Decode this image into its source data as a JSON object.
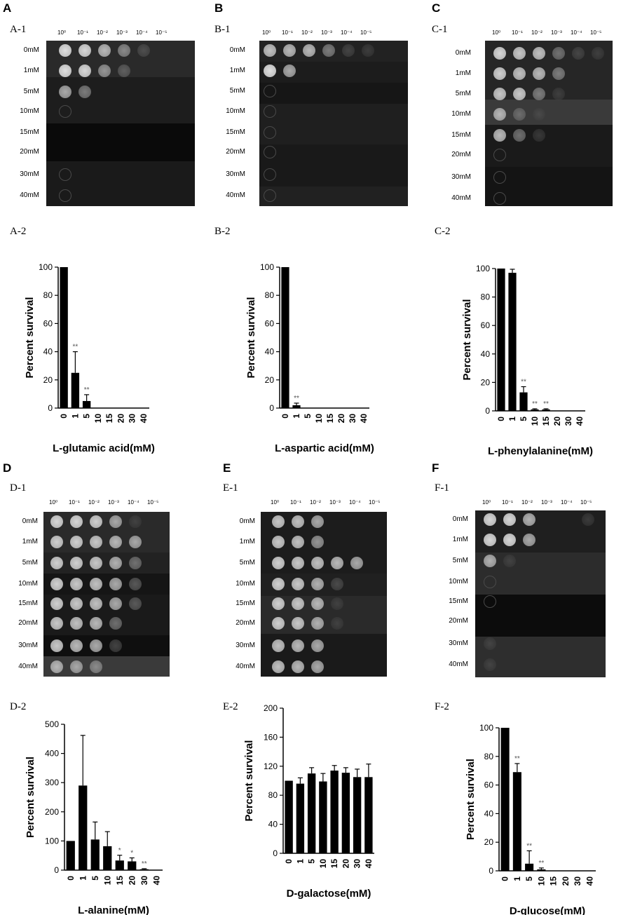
{
  "panels": [
    {
      "id": "A",
      "letter": "A",
      "plate_label": "A-1",
      "chart_label": "A-2",
      "dilutions": [
        "10⁰",
        "10⁻¹",
        "10⁻²",
        "10⁻³",
        "10⁻⁴",
        "10⁻⁵"
      ],
      "concentrations": [
        "0mM",
        "1mM",
        "5mM",
        "10mM",
        "15mM",
        "20mM",
        "30mM",
        "40mM"
      ],
      "growth": [
        [
          0.95,
          0.9,
          0.7,
          0.5,
          0.2,
          0
        ],
        [
          0.95,
          0.9,
          0.55,
          0.3,
          0,
          0
        ],
        [
          0.6,
          0.45,
          0,
          0,
          0,
          0
        ],
        [
          0.05,
          0,
          0,
          0,
          0,
          0
        ],
        [
          0,
          0,
          0,
          0,
          0,
          0
        ],
        [
          0,
          0,
          0,
          0,
          0,
          0
        ],
        [
          0.05,
          0,
          0,
          0,
          0,
          0
        ],
        [
          0.05,
          0,
          0,
          0,
          0,
          0
        ]
      ]
    },
    {
      "id": "B",
      "letter": "B",
      "plate_label": "B-1",
      "chart_label": "B-2",
      "dilutions": [
        "10⁰",
        "10⁻¹",
        "10⁻²",
        "10⁻³",
        "10⁻⁴",
        "10⁻⁵"
      ],
      "concentrations": [
        "0mM",
        "1mM",
        "5mM",
        "10mM",
        "15mM",
        "20mM",
        "30mM",
        "40mM"
      ],
      "growth": [
        [
          0.75,
          0.7,
          0.7,
          0.45,
          0.15,
          0.1
        ],
        [
          0.95,
          0.6,
          0,
          0,
          0,
          0
        ],
        [
          0.05,
          0,
          0,
          0,
          0,
          0
        ],
        [
          0.05,
          0,
          0,
          0,
          0,
          0
        ],
        [
          0.05,
          0,
          0,
          0,
          0,
          0
        ],
        [
          0.05,
          0,
          0,
          0,
          0,
          0
        ],
        [
          0.05,
          0,
          0,
          0,
          0,
          0
        ],
        [
          0.05,
          0,
          0,
          0,
          0,
          0
        ]
      ]
    },
    {
      "id": "C",
      "letter": "C",
      "plate_label": "C-1",
      "chart_label": "C-2",
      "dilutions": [
        "10⁰",
        "10⁻¹",
        "10⁻²",
        "10⁻³",
        "10⁻⁴",
        "10⁻⁵"
      ],
      "concentrations": [
        "0mM",
        "1mM",
        "5mM",
        "10mM",
        "15mM",
        "20mM",
        "30mM",
        "40mM"
      ],
      "growth": [
        [
          0.9,
          0.8,
          0.75,
          0.4,
          0.15,
          0.1
        ],
        [
          0.85,
          0.75,
          0.7,
          0.45,
          0,
          0
        ],
        [
          0.8,
          0.8,
          0.45,
          0.1,
          0,
          0
        ],
        [
          0.7,
          0.35,
          0.1,
          0,
          0,
          0
        ],
        [
          0.7,
          0.4,
          0.1,
          0,
          0,
          0
        ],
        [
          0.05,
          0,
          0,
          0,
          0,
          0
        ],
        [
          0.05,
          0,
          0,
          0,
          0,
          0
        ],
        [
          0.05,
          0,
          0,
          0,
          0,
          0
        ]
      ]
    },
    {
      "id": "D",
      "letter": "D",
      "plate_label": "D-1",
      "chart_label": "D-2",
      "dilutions": [
        "10⁰",
        "10⁻¹",
        "10⁻²",
        "10⁻³",
        "10⁻⁴",
        "10⁻⁵"
      ],
      "concentrations": [
        "0mM",
        "1mM",
        "5mM",
        "10mM",
        "15mM",
        "20mM",
        "30mM",
        "40mM"
      ],
      "growth": [
        [
          0.9,
          0.9,
          0.85,
          0.6,
          0.1,
          0
        ],
        [
          0.85,
          0.85,
          0.8,
          0.7,
          0.6,
          0
        ],
        [
          0.85,
          0.85,
          0.8,
          0.65,
          0.4,
          0
        ],
        [
          0.85,
          0.8,
          0.75,
          0.6,
          0.3,
          0
        ],
        [
          0.85,
          0.8,
          0.75,
          0.6,
          0.3,
          0
        ],
        [
          0.8,
          0.75,
          0.7,
          0.4,
          0,
          0
        ],
        [
          0.8,
          0.7,
          0.6,
          0.2,
          0,
          0
        ],
        [
          0.7,
          0.6,
          0.5,
          0,
          0,
          0
        ]
      ]
    },
    {
      "id": "E",
      "letter": "E",
      "plate_label": "E-1",
      "chart_label": "E-2",
      "dilutions": [
        "10⁰",
        "10⁻¹",
        "10⁻²",
        "10⁻³",
        "10⁻⁴",
        "10⁻⁵"
      ],
      "concentrations": [
        "0mM",
        "1mM",
        "5mM",
        "10mM",
        "15mM",
        "20mM",
        "30mM",
        "40mM"
      ],
      "growth": [
        [
          0.8,
          0.75,
          0.6,
          0,
          0,
          0
        ],
        [
          0.8,
          0.75,
          0.55,
          0,
          0,
          0
        ],
        [
          0.85,
          0.8,
          0.75,
          0.7,
          0.6,
          0
        ],
        [
          0.85,
          0.8,
          0.65,
          0.2,
          0,
          0
        ],
        [
          0.85,
          0.8,
          0.7,
          0.1,
          0,
          0
        ],
        [
          0.85,
          0.8,
          0.65,
          0.1,
          0,
          0
        ],
        [
          0.75,
          0.7,
          0.6,
          0,
          0,
          0
        ],
        [
          0.75,
          0.7,
          0.6,
          0,
          0,
          0
        ]
      ]
    },
    {
      "id": "F",
      "letter": "F",
      "plate_label": "F-1",
      "chart_label": "F-2",
      "dilutions": [
        "10⁰",
        "10⁻¹",
        "10⁻²",
        "10⁻³",
        "10⁻⁴",
        "10⁻⁵"
      ],
      "concentrations": [
        "0mM",
        "1mM",
        "5mM",
        "10mM",
        "15mM",
        "20mM",
        "30mM",
        "40mM"
      ],
      "growth": [
        [
          0.9,
          0.9,
          0.65,
          0,
          0,
          0.1
        ],
        [
          0.9,
          0.9,
          0.6,
          0,
          0,
          0
        ],
        [
          0.65,
          0.1,
          0,
          0,
          0,
          0
        ],
        [
          0.05,
          0,
          0,
          0,
          0,
          0
        ],
        [
          0.05,
          0,
          0,
          0,
          0,
          0
        ],
        [
          0,
          0,
          0,
          0,
          0,
          0
        ],
        [
          0.1,
          0,
          0,
          0,
          0,
          0
        ],
        [
          0.1,
          0,
          0,
          0,
          0,
          0
        ]
      ]
    }
  ],
  "chart_data": [
    {
      "id": "A",
      "type": "bar",
      "categories": [
        "0",
        "1",
        "5",
        "10",
        "15",
        "20",
        "30",
        "40"
      ],
      "values": [
        100,
        25,
        5,
        0,
        0,
        0,
        0,
        0
      ],
      "errors": [
        0,
        15,
        4.5,
        0,
        0,
        0,
        0,
        0
      ],
      "significance": [
        "",
        "**",
        "**",
        "",
        "",
        "",
        "",
        ""
      ],
      "xlabel": "L-glutamic acid(mM)",
      "ylabel": "Percent survival",
      "ylim": [
        0,
        100
      ],
      "yticks": [
        "0",
        "20",
        "40",
        "60",
        "80",
        "100"
      ]
    },
    {
      "id": "B",
      "type": "bar",
      "categories": [
        "0",
        "1",
        "5",
        "10",
        "15",
        "20",
        "30",
        "40"
      ],
      "values": [
        100,
        2,
        0,
        0,
        0,
        0,
        0,
        0
      ],
      "errors": [
        0,
        1.5,
        0,
        0,
        0,
        0,
        0,
        0
      ],
      "significance": [
        "",
        "**",
        "",
        "",
        "",
        "",
        "",
        ""
      ],
      "xlabel": "L-aspartic acid(mM)",
      "ylabel": "Percent survival",
      "ylim": [
        0,
        100
      ],
      "yticks": [
        "0",
        "20",
        "40",
        "60",
        "80",
        "100"
      ]
    },
    {
      "id": "C",
      "type": "bar",
      "categories": [
        "0",
        "1",
        "5",
        "10",
        "15",
        "20",
        "30",
        "40"
      ],
      "values": [
        100,
        97,
        13,
        1,
        1,
        0,
        0,
        0
      ],
      "errors": [
        0,
        2.5,
        4,
        0.5,
        0.5,
        0,
        0,
        0
      ],
      "significance": [
        "",
        "",
        "**",
        "**",
        "**",
        "",
        "",
        ""
      ],
      "xlabel": "L-phenylalanine(mM)",
      "ylabel": "Percent survival",
      "ylim": [
        0,
        100
      ],
      "yticks": [
        "0",
        "20",
        "40",
        "60",
        "80",
        "100"
      ]
    },
    {
      "id": "D",
      "type": "bar",
      "categories": [
        "0",
        "1",
        "5",
        "10",
        "15",
        "20",
        "30",
        "40"
      ],
      "values": [
        100,
        290,
        105,
        82,
        33,
        30,
        3,
        0
      ],
      "errors": [
        0,
        172,
        60,
        50,
        18,
        12,
        2,
        0
      ],
      "significance": [
        "",
        "",
        "",
        "",
        "*",
        "*",
        "**",
        ""
      ],
      "xlabel": "L-alanine(mM)",
      "ylabel": "Percent survival",
      "ylim": [
        0,
        500
      ],
      "yticks": [
        "0",
        "100",
        "200",
        "300",
        "400",
        "500"
      ]
    },
    {
      "id": "E",
      "type": "bar",
      "categories": [
        "0",
        "1",
        "5",
        "10",
        "15",
        "20",
        "30",
        "40"
      ],
      "values": [
        100,
        96,
        110,
        99,
        114,
        111,
        105,
        105
      ],
      "errors": [
        0,
        8,
        8,
        11,
        7,
        7,
        11,
        18
      ],
      "significance": [
        "",
        "",
        "",
        "",
        "",
        "",
        "",
        ""
      ],
      "xlabel": "D-galactose(mM)",
      "ylabel": "Percent survival",
      "ylim": [
        0,
        200
      ],
      "yticks": [
        "0",
        "40",
        "80",
        "120",
        "160",
        "200"
      ]
    },
    {
      "id": "F",
      "type": "bar",
      "categories": [
        "0",
        "1",
        "5",
        "10",
        "15",
        "20",
        "30",
        "40"
      ],
      "values": [
        100,
        69,
        5,
        1,
        0,
        0,
        0,
        0
      ],
      "errors": [
        0,
        6,
        9,
        1,
        0,
        0,
        0,
        0
      ],
      "significance": [
        "",
        "**",
        "**",
        "**",
        "",
        "",
        "",
        ""
      ],
      "xlabel": "D-glucose(mM)",
      "ylabel": "Percent survival",
      "ylim": [
        0,
        100
      ],
      "yticks": [
        "0",
        "20",
        "40",
        "60",
        "80",
        "100"
      ]
    }
  ]
}
